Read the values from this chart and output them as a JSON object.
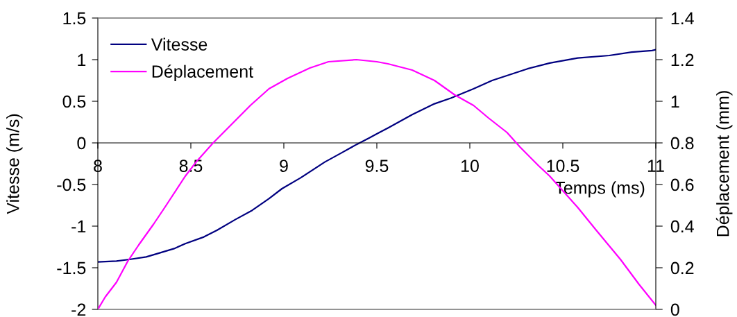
{
  "chart_data": {
    "type": "line",
    "xlabel": "Temps (ms)",
    "ylabel": "Vitesse (m/s)",
    "y2label": "Déplacement (mm)",
    "xlim": [
      8,
      11
    ],
    "xticks": [
      8,
      8.5,
      9,
      9.5,
      10,
      10.5,
      11
    ],
    "ylim": [
      -2,
      1.5
    ],
    "yticks": [
      -2,
      -1.5,
      -1,
      -0.5,
      0,
      0.5,
      1,
      1.5
    ],
    "y2lim": [
      0,
      1.4
    ],
    "y2ticks": [
      0,
      0.2,
      0.4,
      0.6,
      0.8,
      1,
      1.2,
      1.4
    ],
    "legend": "top left",
    "grid": false,
    "marker": "none",
    "line_style": "solid",
    "series": [
      {
        "name": "Vitesse",
        "color": "#000080",
        "x": [
          8.0,
          8.1,
          8.17,
          8.26,
          8.32,
          8.41,
          8.47,
          8.57,
          8.64,
          8.74,
          8.83,
          8.92,
          8.99,
          9.09,
          9.22,
          9.31,
          9.39,
          9.46,
          9.51,
          9.56,
          9.69,
          9.81,
          9.9,
          10.02,
          10.12,
          10.31,
          10.43,
          10.58,
          10.75,
          10.87,
          10.98,
          11.0
        ],
        "values": [
          -1.43,
          -1.42,
          -1.4,
          -1.37,
          -1.33,
          -1.27,
          -1.21,
          -1.13,
          -1.05,
          -0.92,
          -0.81,
          -0.67,
          -0.55,
          -0.42,
          -0.23,
          -0.12,
          -0.02,
          0.06,
          0.12,
          0.18,
          0.34,
          0.47,
          0.54,
          0.65,
          0.75,
          0.89,
          0.96,
          1.02,
          1.05,
          1.09,
          1.11,
          1.12
        ]
      },
      {
        "name": "Déplacement",
        "color": "#ff00ff",
        "axis": "y2",
        "x": [
          8.0,
          8.04,
          8.1,
          8.16,
          8.22,
          8.3,
          8.36,
          8.47,
          8.53,
          8.62,
          8.72,
          8.82,
          8.92,
          9.02,
          9.14,
          9.24,
          9.39,
          9.5,
          9.56,
          9.69,
          9.81,
          9.92,
          10.02,
          10.1,
          10.2,
          10.27,
          10.37,
          10.43,
          10.58,
          10.68,
          10.81,
          10.91,
          11.0
        ],
        "values": [
          0.0,
          0.06,
          0.13,
          0.23,
          0.31,
          0.41,
          0.49,
          0.64,
          0.71,
          0.8,
          0.89,
          0.98,
          1.06,
          1.11,
          1.16,
          1.19,
          1.2,
          1.19,
          1.18,
          1.15,
          1.1,
          1.03,
          0.98,
          0.92,
          0.85,
          0.78,
          0.69,
          0.64,
          0.49,
          0.38,
          0.24,
          0.12,
          0.02
        ]
      }
    ]
  }
}
